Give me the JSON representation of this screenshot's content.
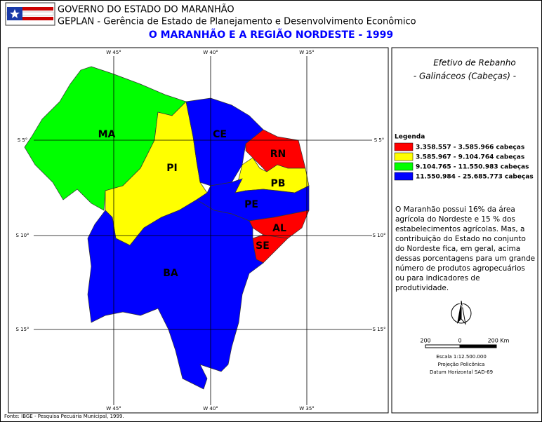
{
  "header": {
    "org": "GOVERNO DO ESTADO DO MARANHÃO",
    "agency": "GEPLAN - Gerência de Estado de Planejamento e Desenvolvimento Econômico",
    "title": "O MARANHÃO E A REGIÃO NORDESTE - 1999"
  },
  "map": {
    "top_labels": [
      "W 45°",
      "W 40°",
      "W 35°"
    ],
    "bottom_labels": [
      "W 45°",
      "W 40°",
      "W 35°"
    ],
    "left_labels": [
      "S 5°",
      "S 10°",
      "S 15°"
    ],
    "right_labels": [
      "S 5°",
      "S 10°",
      "S 15°"
    ],
    "states": [
      {
        "label": "MA",
        "color": "#00ff00"
      },
      {
        "label": "PI",
        "color": "#ffff00"
      },
      {
        "label": "CE",
        "color": "#0000ff"
      },
      {
        "label": "RN",
        "color": "#ff0000"
      },
      {
        "label": "PB",
        "color": "#ffff00"
      },
      {
        "label": "PE",
        "color": "#0000ff"
      },
      {
        "label": "AL",
        "color": "#ff0000"
      },
      {
        "label": "SE",
        "color": "#ff0000"
      },
      {
        "label": "BA",
        "color": "#0000ff"
      }
    ]
  },
  "panel": {
    "title": "Efetivo de Rebanho",
    "subtitle": "- Galináceos (Cabeças) -",
    "legend_title": "Legenda",
    "legend": [
      {
        "label": "3.358.557 - 3.585.966 cabeças",
        "color": "#ff0000"
      },
      {
        "label": "3.585.967 - 9.104.764 cabeças",
        "color": "#ffff00"
      },
      {
        "label": "9.104.765 - 11.550.983 cabeças",
        "color": "#00ff00"
      },
      {
        "label": "11.550.984 - 25.685.773 cabeças",
        "color": "#0000ff"
      }
    ],
    "text": "O Maranhão possui 16% da área agrícola do Nordeste e 15 % dos estabelecimentos agrícolas. Mas, a contribuição do Estado no conjunto do Nordeste fica, em geral, acima dessas porcentagens para um grande número de produtos agropecuários ou para indicadores de produtividade.",
    "north": "N",
    "scale_labels": [
      "200",
      "0",
      "200 Km"
    ],
    "scale": "Escala 1:12.500.000",
    "projection": "Projeção Policônica",
    "datum": "Datum Horizontal SAD-69"
  },
  "footer": "Fonte: IBGE - Pesquisa Pecuária Municipal, 1999."
}
